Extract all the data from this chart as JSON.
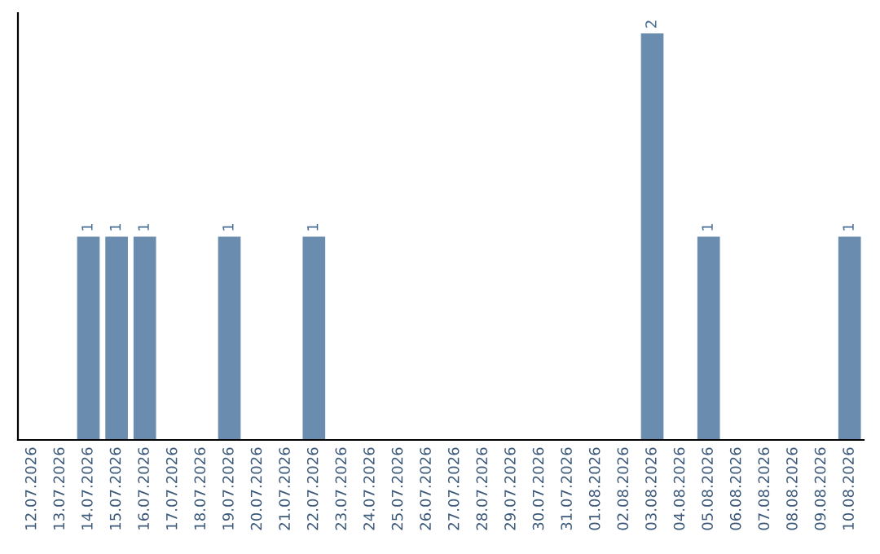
{
  "chart_data": {
    "type": "bar",
    "categories": [
      "12.07.2026",
      "13.07.2026",
      "14.07.2026",
      "15.07.2026",
      "16.07.2026",
      "17.07.2026",
      "18.07.2026",
      "19.07.2026",
      "20.07.2026",
      "21.07.2026",
      "22.07.2026",
      "23.07.2026",
      "24.07.2026",
      "25.07.2026",
      "26.07.2026",
      "27.07.2026",
      "28.07.2026",
      "29.07.2026",
      "30.07.2026",
      "31.07.2026",
      "01.08.2026",
      "02.08.2026",
      "03.08.2026",
      "04.08.2026",
      "05.08.2026",
      "06.08.2026",
      "07.08.2026",
      "08.08.2026",
      "09.08.2026",
      "10.08.2026"
    ],
    "values": [
      0,
      0,
      1,
      1,
      1,
      0,
      0,
      1,
      0,
      0,
      1,
      0,
      0,
      0,
      0,
      0,
      0,
      0,
      0,
      0,
      0,
      0,
      2,
      0,
      1,
      0,
      0,
      0,
      0,
      1
    ],
    "color": "#6a8caf",
    "ylim": [
      0,
      2.1
    ],
    "value_labels": [
      null,
      null,
      "1",
      "1",
      "1",
      null,
      null,
      "1",
      null,
      null,
      "1",
      null,
      null,
      null,
      null,
      null,
      null,
      null,
      null,
      null,
      null,
      null,
      "2",
      null,
      "1",
      null,
      null,
      null,
      null,
      "1"
    ],
    "grid": false,
    "legend": false
  }
}
